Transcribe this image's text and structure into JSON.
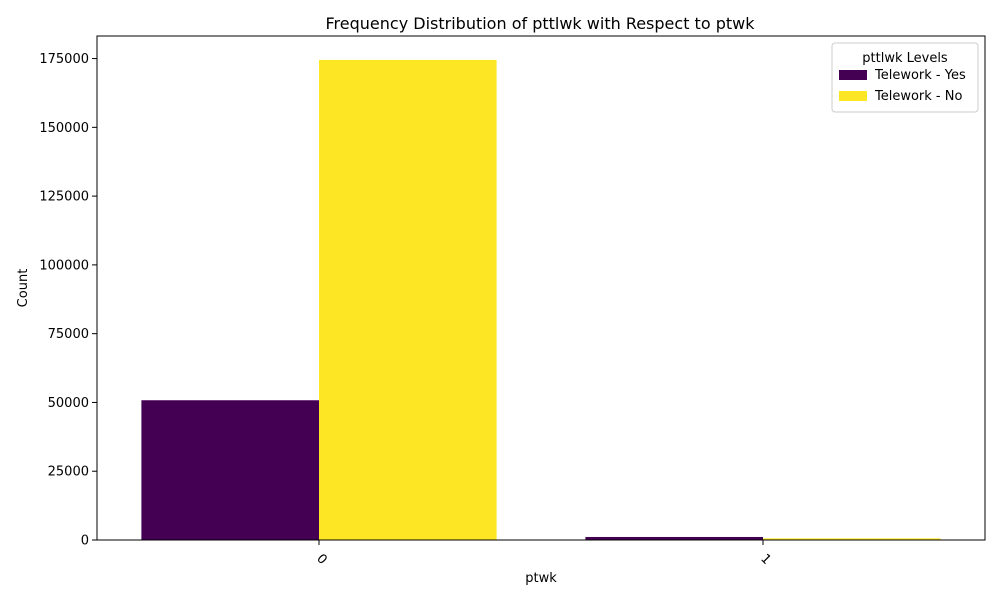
{
  "chart_data": {
    "type": "bar",
    "title": "Frequency Distribution of pttlwk with Respect to ptwk",
    "xlabel": "ptwk",
    "ylabel": "Count",
    "categories": [
      "0",
      "1"
    ],
    "series": [
      {
        "name": "Telework - Yes",
        "color": "#440154",
        "values": [
          50800,
          1100
        ]
      },
      {
        "name": "Telework - No",
        "color": "#FDE725",
        "values": [
          174500,
          600
        ]
      }
    ],
    "ylim": [
      0,
      183200
    ],
    "yticks": [
      0,
      25000,
      50000,
      75000,
      100000,
      125000,
      150000,
      175000
    ],
    "x_tick_rotation_deg": 45,
    "grid": false,
    "legend": {
      "title": "pttlwk Levels",
      "placement": "top-right"
    }
  }
}
